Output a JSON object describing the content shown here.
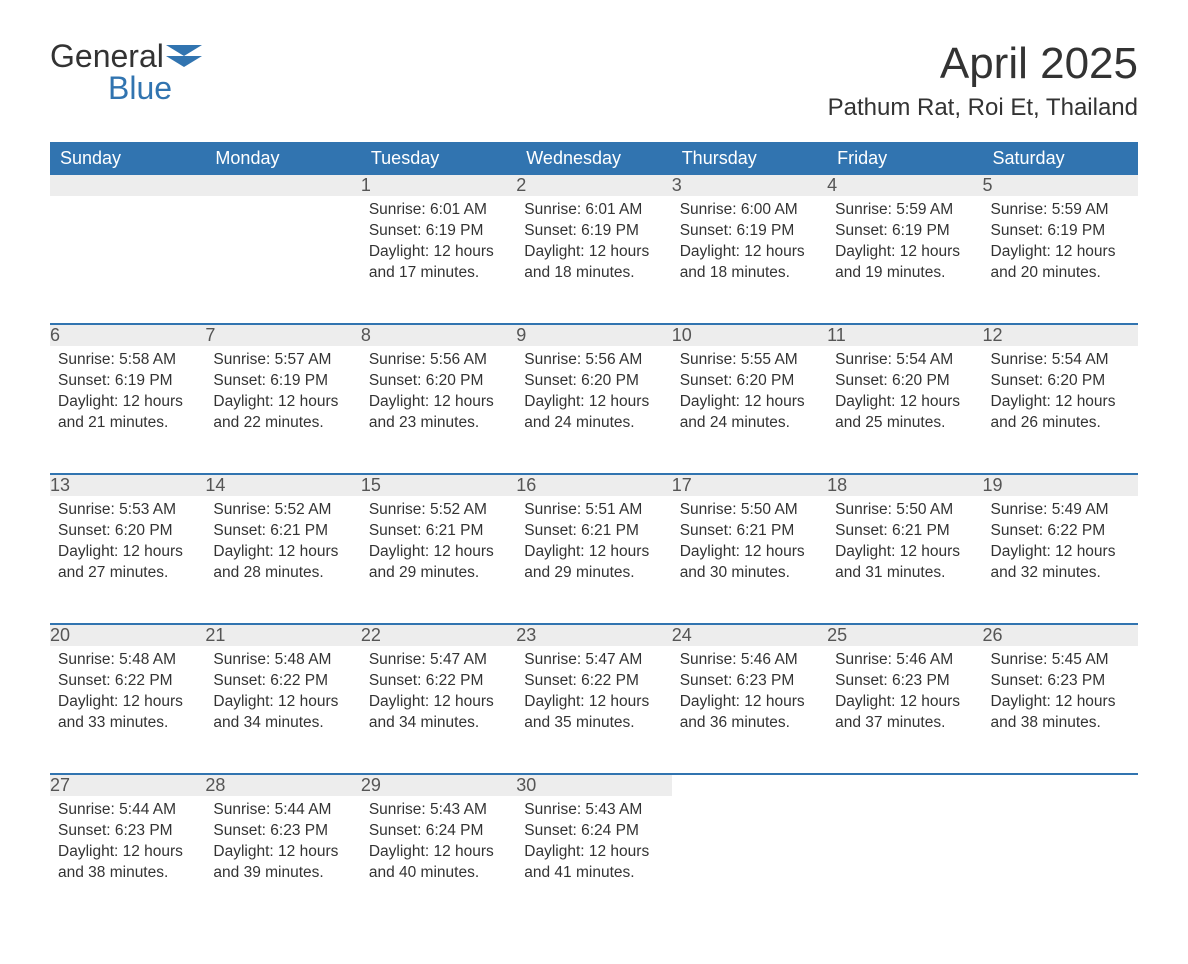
{
  "logo": {
    "general": "General",
    "blue": "Blue"
  },
  "title": "April 2025",
  "location": "Pathum Rat, Roi Et, Thailand",
  "colors": {
    "header_bg": "#3174b0",
    "header_text": "#ffffff",
    "daynum_bg": "#ededed",
    "daynum_border": "#3174b0",
    "body_text": "#333333",
    "page_bg": "#ffffff"
  },
  "fonts": {
    "title_pt": 44,
    "location_pt": 24,
    "header_pt": 18,
    "daynum_pt": 18,
    "body_pt": 15.5
  },
  "weekdays": [
    "Sunday",
    "Monday",
    "Tuesday",
    "Wednesday",
    "Thursday",
    "Friday",
    "Saturday"
  ],
  "grid": [
    [
      null,
      null,
      1,
      2,
      3,
      4,
      5
    ],
    [
      6,
      7,
      8,
      9,
      10,
      11,
      12
    ],
    [
      13,
      14,
      15,
      16,
      17,
      18,
      19
    ],
    [
      20,
      21,
      22,
      23,
      24,
      25,
      26
    ],
    [
      27,
      28,
      29,
      30,
      null,
      null,
      null
    ]
  ],
  "days": {
    "1": {
      "sunrise": "Sunrise: 6:01 AM",
      "sunset": "Sunset: 6:19 PM",
      "d1": "Daylight: 12 hours",
      "d2": "and 17 minutes."
    },
    "2": {
      "sunrise": "Sunrise: 6:01 AM",
      "sunset": "Sunset: 6:19 PM",
      "d1": "Daylight: 12 hours",
      "d2": "and 18 minutes."
    },
    "3": {
      "sunrise": "Sunrise: 6:00 AM",
      "sunset": "Sunset: 6:19 PM",
      "d1": "Daylight: 12 hours",
      "d2": "and 18 minutes."
    },
    "4": {
      "sunrise": "Sunrise: 5:59 AM",
      "sunset": "Sunset: 6:19 PM",
      "d1": "Daylight: 12 hours",
      "d2": "and 19 minutes."
    },
    "5": {
      "sunrise": "Sunrise: 5:59 AM",
      "sunset": "Sunset: 6:19 PM",
      "d1": "Daylight: 12 hours",
      "d2": "and 20 minutes."
    },
    "6": {
      "sunrise": "Sunrise: 5:58 AM",
      "sunset": "Sunset: 6:19 PM",
      "d1": "Daylight: 12 hours",
      "d2": "and 21 minutes."
    },
    "7": {
      "sunrise": "Sunrise: 5:57 AM",
      "sunset": "Sunset: 6:19 PM",
      "d1": "Daylight: 12 hours",
      "d2": "and 22 minutes."
    },
    "8": {
      "sunrise": "Sunrise: 5:56 AM",
      "sunset": "Sunset: 6:20 PM",
      "d1": "Daylight: 12 hours",
      "d2": "and 23 minutes."
    },
    "9": {
      "sunrise": "Sunrise: 5:56 AM",
      "sunset": "Sunset: 6:20 PM",
      "d1": "Daylight: 12 hours",
      "d2": "and 24 minutes."
    },
    "10": {
      "sunrise": "Sunrise: 5:55 AM",
      "sunset": "Sunset: 6:20 PM",
      "d1": "Daylight: 12 hours",
      "d2": "and 24 minutes."
    },
    "11": {
      "sunrise": "Sunrise: 5:54 AM",
      "sunset": "Sunset: 6:20 PM",
      "d1": "Daylight: 12 hours",
      "d2": "and 25 minutes."
    },
    "12": {
      "sunrise": "Sunrise: 5:54 AM",
      "sunset": "Sunset: 6:20 PM",
      "d1": "Daylight: 12 hours",
      "d2": "and 26 minutes."
    },
    "13": {
      "sunrise": "Sunrise: 5:53 AM",
      "sunset": "Sunset: 6:20 PM",
      "d1": "Daylight: 12 hours",
      "d2": "and 27 minutes."
    },
    "14": {
      "sunrise": "Sunrise: 5:52 AM",
      "sunset": "Sunset: 6:21 PM",
      "d1": "Daylight: 12 hours",
      "d2": "and 28 minutes."
    },
    "15": {
      "sunrise": "Sunrise: 5:52 AM",
      "sunset": "Sunset: 6:21 PM",
      "d1": "Daylight: 12 hours",
      "d2": "and 29 minutes."
    },
    "16": {
      "sunrise": "Sunrise: 5:51 AM",
      "sunset": "Sunset: 6:21 PM",
      "d1": "Daylight: 12 hours",
      "d2": "and 29 minutes."
    },
    "17": {
      "sunrise": "Sunrise: 5:50 AM",
      "sunset": "Sunset: 6:21 PM",
      "d1": "Daylight: 12 hours",
      "d2": "and 30 minutes."
    },
    "18": {
      "sunrise": "Sunrise: 5:50 AM",
      "sunset": "Sunset: 6:21 PM",
      "d1": "Daylight: 12 hours",
      "d2": "and 31 minutes."
    },
    "19": {
      "sunrise": "Sunrise: 5:49 AM",
      "sunset": "Sunset: 6:22 PM",
      "d1": "Daylight: 12 hours",
      "d2": "and 32 minutes."
    },
    "20": {
      "sunrise": "Sunrise: 5:48 AM",
      "sunset": "Sunset: 6:22 PM",
      "d1": "Daylight: 12 hours",
      "d2": "and 33 minutes."
    },
    "21": {
      "sunrise": "Sunrise: 5:48 AM",
      "sunset": "Sunset: 6:22 PM",
      "d1": "Daylight: 12 hours",
      "d2": "and 34 minutes."
    },
    "22": {
      "sunrise": "Sunrise: 5:47 AM",
      "sunset": "Sunset: 6:22 PM",
      "d1": "Daylight: 12 hours",
      "d2": "and 34 minutes."
    },
    "23": {
      "sunrise": "Sunrise: 5:47 AM",
      "sunset": "Sunset: 6:22 PM",
      "d1": "Daylight: 12 hours",
      "d2": "and 35 minutes."
    },
    "24": {
      "sunrise": "Sunrise: 5:46 AM",
      "sunset": "Sunset: 6:23 PM",
      "d1": "Daylight: 12 hours",
      "d2": "and 36 minutes."
    },
    "25": {
      "sunrise": "Sunrise: 5:46 AM",
      "sunset": "Sunset: 6:23 PM",
      "d1": "Daylight: 12 hours",
      "d2": "and 37 minutes."
    },
    "26": {
      "sunrise": "Sunrise: 5:45 AM",
      "sunset": "Sunset: 6:23 PM",
      "d1": "Daylight: 12 hours",
      "d2": "and 38 minutes."
    },
    "27": {
      "sunrise": "Sunrise: 5:44 AM",
      "sunset": "Sunset: 6:23 PM",
      "d1": "Daylight: 12 hours",
      "d2": "and 38 minutes."
    },
    "28": {
      "sunrise": "Sunrise: 5:44 AM",
      "sunset": "Sunset: 6:23 PM",
      "d1": "Daylight: 12 hours",
      "d2": "and 39 minutes."
    },
    "29": {
      "sunrise": "Sunrise: 5:43 AM",
      "sunset": "Sunset: 6:24 PM",
      "d1": "Daylight: 12 hours",
      "d2": "and 40 minutes."
    },
    "30": {
      "sunrise": "Sunrise: 5:43 AM",
      "sunset": "Sunset: 6:24 PM",
      "d1": "Daylight: 12 hours",
      "d2": "and 41 minutes."
    }
  }
}
